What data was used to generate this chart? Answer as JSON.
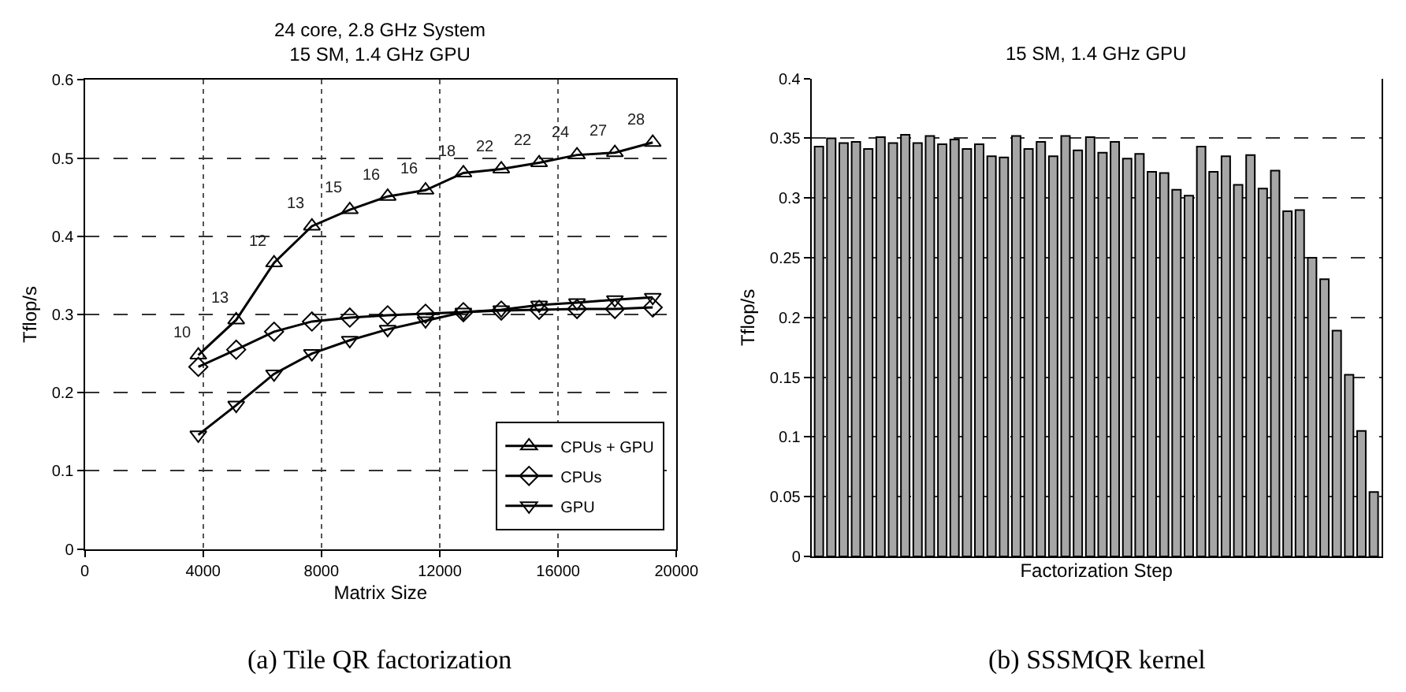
{
  "chart_data": [
    {
      "type": "line",
      "title": "24 core, 2.8 GHz System\n15 SM, 1.4 GHz GPU",
      "xlabel": "Matrix Size",
      "ylabel": "Tflop/s",
      "x": [
        3840,
        5120,
        6400,
        7680,
        8960,
        10240,
        11520,
        12800,
        14080,
        15360,
        16640,
        17920,
        19200
      ],
      "series": [
        {
          "name": "CPUs + GPU",
          "color": "#000000",
          "marker": "triangle",
          "values": [
            0.248,
            0.293,
            0.366,
            0.413,
            0.434,
            0.451,
            0.459,
            0.481,
            0.486,
            0.494,
            0.504,
            0.507,
            0.52
          ]
        },
        {
          "name": "CPUs",
          "color": "#000000",
          "marker": "diamond",
          "values": [
            0.233,
            0.255,
            0.278,
            0.291,
            0.296,
            0.299,
            0.301,
            0.303,
            0.305,
            0.306,
            0.307,
            0.307,
            0.309
          ]
        },
        {
          "name": "GPU",
          "color": "#000000",
          "marker": "triangle-down",
          "values": [
            0.146,
            0.184,
            0.224,
            0.25,
            0.267,
            0.281,
            0.292,
            0.303,
            0.306,
            0.312,
            0.315,
            0.319,
            0.322
          ]
        }
      ],
      "xlim": [
        0,
        20000
      ],
      "xticks": [
        0,
        4000,
        8000,
        12000,
        16000,
        20000
      ],
      "ylim": [
        0,
        0.6
      ],
      "yticks": [
        0,
        0.1,
        0.2,
        0.3,
        0.4,
        0.5,
        0.6
      ],
      "grid": true,
      "legend": "bottom right",
      "line_style": "solid",
      "annotations": [
        "(a) Tile QR factorization",
        {
          "text": "10",
          "x": 3840,
          "y": 0.248
        },
        {
          "text": "13",
          "x": 5120,
          "y": 0.293
        },
        {
          "text": "12",
          "x": 6400,
          "y": 0.366
        },
        {
          "text": "13",
          "x": 7680,
          "y": 0.413
        },
        {
          "text": "15",
          "x": 8960,
          "y": 0.434
        },
        {
          "text": "16",
          "x": 10240,
          "y": 0.451
        },
        {
          "text": "16",
          "x": 11520,
          "y": 0.459
        },
        {
          "text": "18",
          "x": 12800,
          "y": 0.481
        },
        {
          "text": "22",
          "x": 14080,
          "y": 0.486
        },
        {
          "text": "22",
          "x": 15360,
          "y": 0.494
        },
        {
          "text": "24",
          "x": 16640,
          "y": 0.504
        },
        {
          "text": "27",
          "x": 17920,
          "y": 0.507
        },
        {
          "text": "28",
          "x": 19200,
          "y": 0.52
        }
      ]
    },
    {
      "type": "bar",
      "title": "15 SM, 1.4 GHz GPU",
      "xlabel": "Factorization Step",
      "ylabel": "Tflop/s",
      "categories": [
        null,
        null,
        null,
        null,
        null,
        null,
        null,
        null,
        null,
        null,
        null,
        null,
        null,
        null,
        null,
        null,
        null,
        null,
        null,
        null,
        null,
        null,
        null,
        null,
        null,
        null,
        null,
        null,
        null,
        null,
        null,
        null,
        null,
        null,
        null,
        null,
        null,
        null,
        null,
        null,
        null,
        null,
        null,
        null,
        null,
        null
      ],
      "series": [
        {
          "color": "#a6a6a6",
          "values": [
            0.343,
            0.35,
            0.346,
            0.347,
            0.341,
            0.351,
            0.346,
            0.353,
            0.346,
            0.352,
            0.345,
            0.349,
            0.341,
            0.345,
            0.335,
            0.334,
            0.352,
            0.341,
            0.347,
            0.335,
            0.352,
            0.34,
            0.351,
            0.338,
            0.347,
            0.333,
            0.337,
            0.322,
            0.321,
            0.307,
            0.302,
            0.343,
            0.322,
            0.335,
            0.311,
            0.336,
            0.308,
            0.323,
            0.289,
            0.29,
            0.25,
            0.232,
            0.189,
            0.152,
            0.105,
            0.054
          ]
        }
      ],
      "ylim": [
        0,
        0.4
      ],
      "yticks": [
        0,
        0.05,
        0.1,
        0.15,
        0.2,
        0.25,
        0.3,
        0.35,
        0.4
      ],
      "grid": "y",
      "tick_labels": "y",
      "annotations": [
        "(b) SSSMQR kernel"
      ]
    }
  ]
}
